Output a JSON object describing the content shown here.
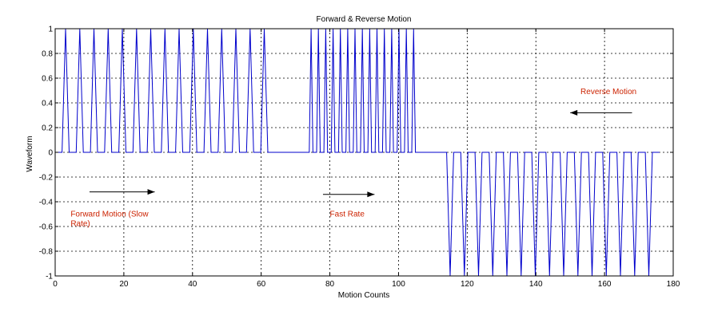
{
  "chart_data": {
    "type": "line",
    "title": "Forward & Reverse Motion",
    "xlabel": "Motion Counts",
    "ylabel": "Waveform",
    "xlim": [
      0,
      180
    ],
    "ylim": [
      -1,
      1
    ],
    "xticks": [
      "0",
      "20",
      "40",
      "60",
      "80",
      "100",
      "120",
      "140",
      "160",
      "180"
    ],
    "yticks": [
      "1",
      "0.8",
      "0.6",
      "0.4",
      "0.2",
      "0",
      "-0.2",
      "-0.4",
      "-0.6",
      "-0.8",
      "-1"
    ],
    "grid": true,
    "line_color": "#0000cc",
    "annotation_color": "#cc2200",
    "segments": [
      {
        "x_start": 2,
        "x_end": 64,
        "pulses": 15,
        "amplitude": 1,
        "rate": "slow"
      },
      {
        "x_start": 74,
        "x_end": 106,
        "pulses": 15,
        "amplitude": 1,
        "rate": "fast"
      },
      {
        "x_start": 114,
        "x_end": 176,
        "pulses": 15,
        "amplitude": -1,
        "rate": "slow"
      }
    ],
    "annotations": [
      {
        "lines": [
          "Forward Motion (Slow",
          "Rate)"
        ],
        "x": 4.5,
        "y": -0.52,
        "color": "#cc2200"
      },
      {
        "lines": [
          "Fast Rate"
        ],
        "x": 80,
        "y": -0.52,
        "color": "#cc2200"
      },
      {
        "lines": [
          "Reverse Motion"
        ],
        "x": 153,
        "y": 0.47,
        "color": "#cc2200"
      }
    ],
    "arrows": [
      {
        "from": [
          10,
          -0.32
        ],
        "to": [
          29,
          -0.32
        ],
        "direction": "right"
      },
      {
        "from": [
          78,
          -0.34
        ],
        "to": [
          93,
          -0.34
        ],
        "direction": "right"
      },
      {
        "from": [
          168,
          0.32
        ],
        "to": [
          150,
          0.32
        ],
        "direction": "left"
      }
    ]
  }
}
